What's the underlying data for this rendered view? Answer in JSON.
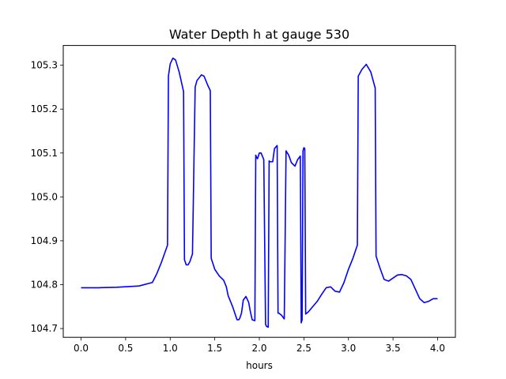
{
  "chart_data": {
    "type": "line",
    "title": "Water Depth h at gauge 530",
    "xlabel": "hours",
    "ylabel": "",
    "xlim": [
      -0.2,
      4.2
    ],
    "ylim": [
      104.68,
      105.345
    ],
    "x_ticks": [
      0.0,
      0.5,
      1.0,
      1.5,
      2.0,
      2.5,
      3.0,
      3.5,
      4.0
    ],
    "x_tick_labels": [
      "0.0",
      "0.5",
      "1.0",
      "1.5",
      "2.0",
      "2.5",
      "3.0",
      "3.5",
      "4.0"
    ],
    "y_ticks": [
      104.7,
      104.8,
      104.9,
      105.0,
      105.1,
      105.2,
      105.3
    ],
    "y_tick_labels": [
      "104.7",
      "104.8",
      "104.9",
      "105.0",
      "105.1",
      "105.2",
      "105.3"
    ],
    "grid": false,
    "line_color": "#0000ff",
    "series": [
      {
        "x": [
          0.0,
          0.2,
          0.4,
          0.65,
          0.8,
          0.85,
          0.9,
          0.97,
          0.98,
          1.0,
          1.03,
          1.06,
          1.1,
          1.15,
          1.16,
          1.18,
          1.2,
          1.22,
          1.25,
          1.28,
          1.3,
          1.35,
          1.38,
          1.42,
          1.45,
          1.46,
          1.5,
          1.55,
          1.6,
          1.63,
          1.65,
          1.7,
          1.75,
          1.77,
          1.78,
          1.8,
          1.81,
          1.82,
          1.85,
          1.88,
          1.9,
          1.92,
          1.95,
          1.96,
          1.97,
          1.98,
          2.0,
          2.02,
          2.05,
          2.07,
          2.08,
          2.1,
          2.11,
          2.12,
          2.15,
          2.17,
          2.2,
          2.21,
          2.22,
          2.25,
          2.28,
          2.3,
          2.33,
          2.36,
          2.4,
          2.43,
          2.46,
          2.47,
          2.48,
          2.49,
          2.5,
          2.51,
          2.52,
          2.55,
          2.6,
          2.65,
          2.7,
          2.75,
          2.8,
          2.85,
          2.9,
          2.95,
          3.0,
          3.05,
          3.1,
          3.11,
          3.15,
          3.2,
          3.25,
          3.3,
          3.31,
          3.35,
          3.4,
          3.45,
          3.5,
          3.55,
          3.6,
          3.65,
          3.7,
          3.75,
          3.8,
          3.85,
          3.9,
          3.95,
          4.0
        ],
        "y": [
          104.793,
          104.793,
          104.794,
          104.797,
          104.805,
          104.825,
          104.85,
          104.89,
          105.275,
          105.303,
          105.316,
          105.312,
          105.285,
          105.24,
          104.857,
          104.845,
          104.845,
          104.852,
          104.87,
          105.25,
          105.265,
          105.278,
          105.275,
          105.255,
          105.242,
          104.86,
          104.835,
          104.82,
          104.81,
          104.795,
          104.775,
          104.75,
          104.72,
          104.72,
          104.723,
          104.735,
          104.75,
          104.765,
          104.773,
          104.76,
          104.738,
          104.72,
          104.718,
          105.095,
          105.09,
          105.087,
          105.1,
          105.1,
          105.085,
          104.71,
          104.705,
          104.703,
          105.082,
          105.08,
          105.08,
          105.11,
          105.117,
          104.735,
          104.735,
          104.73,
          104.722,
          105.105,
          105.095,
          105.078,
          105.07,
          105.085,
          105.093,
          104.713,
          104.72,
          105.105,
          105.112,
          105.11,
          104.733,
          104.738,
          104.75,
          104.762,
          104.778,
          104.793,
          104.795,
          104.785,
          104.783,
          104.805,
          104.835,
          104.86,
          104.89,
          105.275,
          105.29,
          105.302,
          105.285,
          105.248,
          104.865,
          104.84,
          104.812,
          104.808,
          104.815,
          104.822,
          104.823,
          104.82,
          104.812,
          104.79,
          104.768,
          104.759,
          104.762,
          104.768,
          104.768
        ]
      }
    ]
  }
}
